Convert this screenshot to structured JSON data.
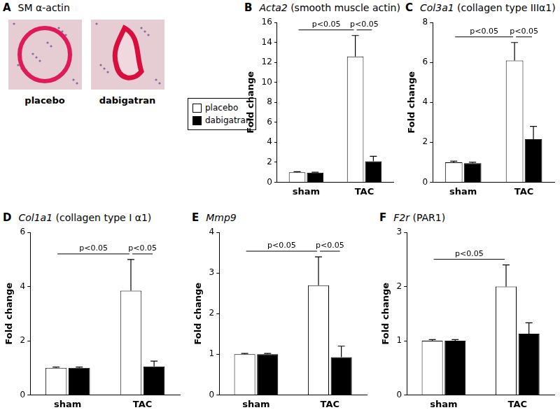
{
  "panel_a": {
    "panel": "A",
    "title": "SM α-actin",
    "images": [
      "placebo",
      "dabigatran"
    ]
  },
  "chart_data": [
    {
      "type": "bar",
      "panel": "B",
      "title": "Acta2 (smooth muscle actin)",
      "y_label": "Fold change",
      "categories": [
        "sham",
        "TAC"
      ],
      "series": [
        {
          "name": "placebo",
          "color": "#ffffff",
          "values": [
            1.0,
            12.6
          ],
          "errors": [
            0.05,
            2.1
          ]
        },
        {
          "name": "dabigatran",
          "color": "#000000",
          "values": [
            0.95,
            2.1
          ],
          "errors": [
            0.05,
            0.5
          ]
        }
      ],
      "ylim": [
        0,
        16
      ],
      "yticks": [
        0,
        2,
        4,
        6,
        8,
        10,
        12,
        14,
        16
      ],
      "grid": false,
      "annotations": [
        {
          "text": "p<0.05",
          "from": [
            0,
            0
          ],
          "to": [
            1,
            0
          ]
        },
        {
          "text": "p<0.05",
          "from": [
            1,
            0
          ],
          "to": [
            1,
            1
          ]
        }
      ]
    },
    {
      "type": "bar",
      "panel": "C",
      "title": "Col3a1 (collagen type IIIα1)",
      "y_label": "Fold change",
      "categories": [
        "sham",
        "TAC"
      ],
      "series": [
        {
          "name": "placebo",
          "color": "#ffffff",
          "values": [
            1.0,
            6.1
          ],
          "errors": [
            0.05,
            0.9
          ]
        },
        {
          "name": "dabigatran",
          "color": "#000000",
          "values": [
            0.95,
            2.15
          ],
          "errors": [
            0.05,
            0.65
          ]
        }
      ],
      "ylim": [
        0,
        8
      ],
      "yticks": [
        0,
        2,
        4,
        6,
        8
      ],
      "grid": false,
      "annotations": [
        {
          "text": "p<0.05",
          "from": [
            0,
            0
          ],
          "to": [
            1,
            0
          ]
        },
        {
          "text": "p<0.05",
          "from": [
            1,
            0
          ],
          "to": [
            1,
            1
          ]
        }
      ]
    },
    {
      "type": "bar",
      "panel": "D",
      "title": "Col1a1 (collagen type I α1)",
      "y_label": "Fold change",
      "categories": [
        "sham",
        "TAC"
      ],
      "series": [
        {
          "name": "placebo",
          "color": "#ffffff",
          "values": [
            1.0,
            3.85
          ],
          "errors": [
            0.03,
            1.15
          ]
        },
        {
          "name": "dabigatran",
          "color": "#000000",
          "values": [
            1.0,
            1.05
          ],
          "errors": [
            0.03,
            0.2
          ]
        }
      ],
      "ylim": [
        0,
        6
      ],
      "yticks": [
        0,
        2,
        4,
        6
      ],
      "grid": false,
      "annotations": [
        {
          "text": "p<0.05",
          "from": [
            0,
            0
          ],
          "to": [
            1,
            0
          ]
        },
        {
          "text": "p<0.05",
          "from": [
            1,
            0
          ],
          "to": [
            1,
            1
          ]
        }
      ]
    },
    {
      "type": "bar",
      "panel": "E",
      "title": "Mmp9",
      "y_label": "Fold change",
      "categories": [
        "sham",
        "TAC"
      ],
      "series": [
        {
          "name": "placebo",
          "color": "#ffffff",
          "values": [
            1.0,
            2.7
          ],
          "errors": [
            0.02,
            0.7
          ]
        },
        {
          "name": "dabigatran",
          "color": "#000000",
          "values": [
            1.0,
            0.93
          ],
          "errors": [
            0.02,
            0.27
          ]
        }
      ],
      "ylim": [
        0,
        4
      ],
      "yticks": [
        0,
        1,
        2,
        3,
        4
      ],
      "grid": false,
      "annotations": [
        {
          "text": "p<0.05",
          "from": [
            0,
            0
          ],
          "to": [
            1,
            0
          ]
        },
        {
          "text": "p<0.05",
          "from": [
            1,
            0
          ],
          "to": [
            1,
            1
          ]
        }
      ]
    },
    {
      "type": "bar",
      "panel": "F",
      "title": "F2r (PAR1)",
      "y_label": "Fold change",
      "categories": [
        "sham",
        "TAC"
      ],
      "series": [
        {
          "name": "placebo",
          "color": "#ffffff",
          "values": [
            1.0,
            2.0
          ],
          "errors": [
            0.02,
            0.4
          ]
        },
        {
          "name": "dabigatran",
          "color": "#000000",
          "values": [
            1.0,
            1.13
          ],
          "errors": [
            0.02,
            0.2
          ]
        }
      ],
      "ylim": [
        0,
        3
      ],
      "yticks": [
        0,
        1,
        2,
        3
      ],
      "grid": false,
      "annotations": [
        {
          "text": "p<0.05",
          "from": [
            0,
            0
          ],
          "to": [
            1,
            0
          ]
        }
      ]
    }
  ]
}
